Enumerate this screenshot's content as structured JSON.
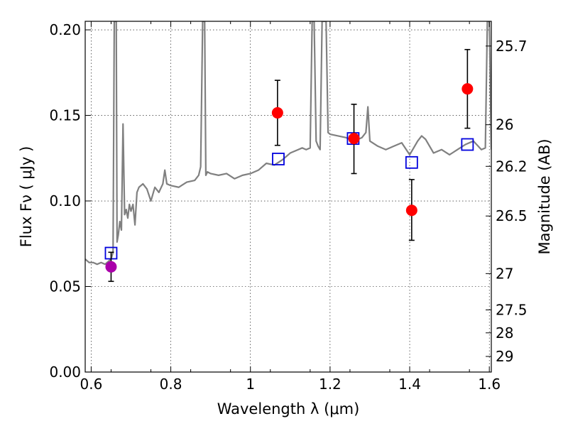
{
  "chart_data": {
    "type": "scatter",
    "title": "",
    "xlabel": "Wavelength  λ (μm)",
    "ylabel": "Flux  Fν  ( μJy )",
    "y2label": "Magnitude (AB)",
    "xlim": [
      0.585,
      1.605
    ],
    "ylim": [
      0.0,
      0.205
    ],
    "grid": true,
    "x_ticks": [
      0.6,
      0.8,
      1.0,
      1.2,
      1.4,
      1.6
    ],
    "x_tick_labels": [
      "0.6",
      "0.8",
      "1",
      "1.2",
      "1.4",
      "1.6"
    ],
    "y_ticks": [
      0.0,
      0.05,
      0.1,
      0.15,
      0.2
    ],
    "y_tick_labels": [
      "0.00",
      "0.05",
      "0.10",
      "0.15",
      "0.20"
    ],
    "y2_ticks": [
      25.7,
      26,
      26.2,
      26.5,
      27,
      27.5,
      28,
      29
    ],
    "y2_tick_labels": [
      "25.7",
      "26",
      "26.2",
      "26.5",
      "27",
      "27.5",
      "28",
      "29"
    ],
    "colors": {
      "spectrum": "#808080",
      "model": "#0000dd",
      "observed": "#ff0000",
      "optical": "#aa00aa",
      "errorbar": "#000000"
    },
    "series": [
      {
        "kind": "spectrum",
        "x": [
          0.585,
          0.595,
          0.605,
          0.615,
          0.625,
          0.635,
          0.645,
          0.65,
          0.655,
          0.658,
          0.66,
          0.663,
          0.665,
          0.668,
          0.672,
          0.676,
          0.68,
          0.684,
          0.688,
          0.692,
          0.696,
          0.7,
          0.705,
          0.71,
          0.715,
          0.72,
          0.73,
          0.74,
          0.75,
          0.76,
          0.77,
          0.78,
          0.785,
          0.79,
          0.8,
          0.82,
          0.84,
          0.86,
          0.87,
          0.875,
          0.88,
          0.885,
          0.888,
          0.892,
          0.9,
          0.92,
          0.94,
          0.96,
          0.98,
          1.0,
          1.02,
          1.04,
          1.06,
          1.08,
          1.1,
          1.12,
          1.13,
          1.14,
          1.15,
          1.155,
          1.16,
          1.165,
          1.17,
          1.175,
          1.18,
          1.185,
          1.19,
          1.195,
          1.2,
          1.22,
          1.24,
          1.26,
          1.28,
          1.29,
          1.295,
          1.3,
          1.32,
          1.34,
          1.36,
          1.38,
          1.4,
          1.42,
          1.43,
          1.44,
          1.46,
          1.48,
          1.5,
          1.52,
          1.54,
          1.56,
          1.58,
          1.59,
          1.595,
          1.6,
          1.605
        ],
        "y": [
          0.066,
          0.064,
          0.064,
          0.063,
          0.064,
          0.063,
          0.065,
          0.066,
          0.07,
          0.205,
          0.205,
          0.205,
          0.076,
          0.08,
          0.088,
          0.083,
          0.145,
          0.092,
          0.095,
          0.09,
          0.098,
          0.094,
          0.098,
          0.086,
          0.105,
          0.108,
          0.11,
          0.107,
          0.1,
          0.108,
          0.105,
          0.11,
          0.118,
          0.11,
          0.109,
          0.108,
          0.111,
          0.112,
          0.115,
          0.12,
          0.205,
          0.205,
          0.115,
          0.117,
          0.116,
          0.115,
          0.116,
          0.113,
          0.115,
          0.116,
          0.118,
          0.122,
          0.121,
          0.124,
          0.128,
          0.13,
          0.131,
          0.13,
          0.131,
          0.205,
          0.205,
          0.135,
          0.132,
          0.13,
          0.205,
          0.205,
          0.205,
          0.14,
          0.139,
          0.138,
          0.137,
          0.135,
          0.137,
          0.14,
          0.155,
          0.135,
          0.132,
          0.13,
          0.132,
          0.134,
          0.127,
          0.135,
          0.138,
          0.136,
          0.128,
          0.13,
          0.127,
          0.13,
          0.133,
          0.135,
          0.13,
          0.131,
          0.205,
          0.205,
          0.13
        ]
      },
      {
        "kind": "model",
        "x": [
          0.65,
          1.07,
          1.258,
          1.405,
          1.545
        ],
        "y": [
          0.0695,
          0.1245,
          0.1365,
          0.1225,
          0.133
        ]
      },
      {
        "kind": "observed",
        "x": [
          1.068,
          1.26,
          1.405,
          1.545
        ],
        "y": [
          0.1515,
          0.1365,
          0.0945,
          0.1655
        ],
        "yerr_low": [
          0.1325,
          0.116,
          0.077,
          0.1425
        ],
        "yerr_high": [
          0.1705,
          0.1565,
          0.1125,
          0.1885
        ]
      },
      {
        "kind": "optical",
        "x": [
          0.65
        ],
        "y": [
          0.0615
        ],
        "yerr_low": [
          0.053
        ],
        "yerr_high": [
          0.07
        ]
      }
    ]
  }
}
